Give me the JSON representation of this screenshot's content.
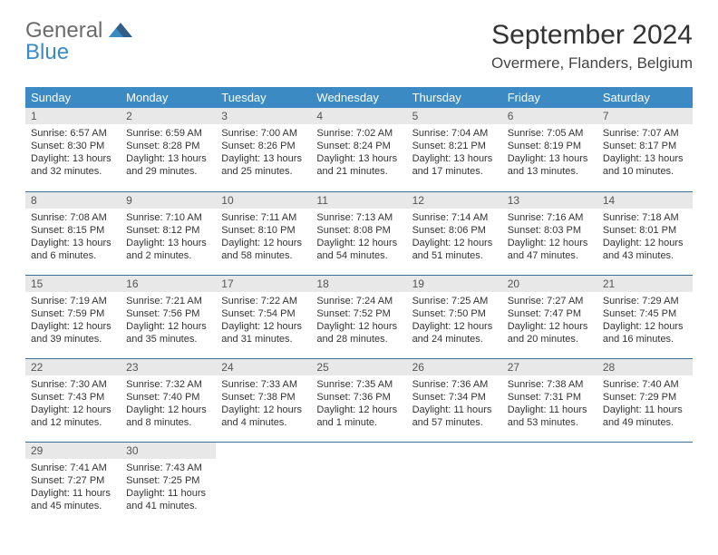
{
  "logo": {
    "general": "General",
    "blue": "Blue"
  },
  "title": "September 2024",
  "location": "Overmere, Flanders, Belgium",
  "colors": {
    "header_bg": "#3b8ac4",
    "header_text": "#ffffff",
    "daynum_bg": "#e8e8e8",
    "border": "#3b6f96",
    "logo_gray": "#6b6b6b",
    "logo_blue": "#3b8ac4"
  },
  "weekdays": [
    "Sunday",
    "Monday",
    "Tuesday",
    "Wednesday",
    "Thursday",
    "Friday",
    "Saturday"
  ],
  "weeks": [
    [
      {
        "n": "1",
        "sr": "Sunrise: 6:57 AM",
        "ss": "Sunset: 8:30 PM",
        "d1": "Daylight: 13 hours",
        "d2": "and 32 minutes."
      },
      {
        "n": "2",
        "sr": "Sunrise: 6:59 AM",
        "ss": "Sunset: 8:28 PM",
        "d1": "Daylight: 13 hours",
        "d2": "and 29 minutes."
      },
      {
        "n": "3",
        "sr": "Sunrise: 7:00 AM",
        "ss": "Sunset: 8:26 PM",
        "d1": "Daylight: 13 hours",
        "d2": "and 25 minutes."
      },
      {
        "n": "4",
        "sr": "Sunrise: 7:02 AM",
        "ss": "Sunset: 8:24 PM",
        "d1": "Daylight: 13 hours",
        "d2": "and 21 minutes."
      },
      {
        "n": "5",
        "sr": "Sunrise: 7:04 AM",
        "ss": "Sunset: 8:21 PM",
        "d1": "Daylight: 13 hours",
        "d2": "and 17 minutes."
      },
      {
        "n": "6",
        "sr": "Sunrise: 7:05 AM",
        "ss": "Sunset: 8:19 PM",
        "d1": "Daylight: 13 hours",
        "d2": "and 13 minutes."
      },
      {
        "n": "7",
        "sr": "Sunrise: 7:07 AM",
        "ss": "Sunset: 8:17 PM",
        "d1": "Daylight: 13 hours",
        "d2": "and 10 minutes."
      }
    ],
    [
      {
        "n": "8",
        "sr": "Sunrise: 7:08 AM",
        "ss": "Sunset: 8:15 PM",
        "d1": "Daylight: 13 hours",
        "d2": "and 6 minutes."
      },
      {
        "n": "9",
        "sr": "Sunrise: 7:10 AM",
        "ss": "Sunset: 8:12 PM",
        "d1": "Daylight: 13 hours",
        "d2": "and 2 minutes."
      },
      {
        "n": "10",
        "sr": "Sunrise: 7:11 AM",
        "ss": "Sunset: 8:10 PM",
        "d1": "Daylight: 12 hours",
        "d2": "and 58 minutes."
      },
      {
        "n": "11",
        "sr": "Sunrise: 7:13 AM",
        "ss": "Sunset: 8:08 PM",
        "d1": "Daylight: 12 hours",
        "d2": "and 54 minutes."
      },
      {
        "n": "12",
        "sr": "Sunrise: 7:14 AM",
        "ss": "Sunset: 8:06 PM",
        "d1": "Daylight: 12 hours",
        "d2": "and 51 minutes."
      },
      {
        "n": "13",
        "sr": "Sunrise: 7:16 AM",
        "ss": "Sunset: 8:03 PM",
        "d1": "Daylight: 12 hours",
        "d2": "and 47 minutes."
      },
      {
        "n": "14",
        "sr": "Sunrise: 7:18 AM",
        "ss": "Sunset: 8:01 PM",
        "d1": "Daylight: 12 hours",
        "d2": "and 43 minutes."
      }
    ],
    [
      {
        "n": "15",
        "sr": "Sunrise: 7:19 AM",
        "ss": "Sunset: 7:59 PM",
        "d1": "Daylight: 12 hours",
        "d2": "and 39 minutes."
      },
      {
        "n": "16",
        "sr": "Sunrise: 7:21 AM",
        "ss": "Sunset: 7:56 PM",
        "d1": "Daylight: 12 hours",
        "d2": "and 35 minutes."
      },
      {
        "n": "17",
        "sr": "Sunrise: 7:22 AM",
        "ss": "Sunset: 7:54 PM",
        "d1": "Daylight: 12 hours",
        "d2": "and 31 minutes."
      },
      {
        "n": "18",
        "sr": "Sunrise: 7:24 AM",
        "ss": "Sunset: 7:52 PM",
        "d1": "Daylight: 12 hours",
        "d2": "and 28 minutes."
      },
      {
        "n": "19",
        "sr": "Sunrise: 7:25 AM",
        "ss": "Sunset: 7:50 PM",
        "d1": "Daylight: 12 hours",
        "d2": "and 24 minutes."
      },
      {
        "n": "20",
        "sr": "Sunrise: 7:27 AM",
        "ss": "Sunset: 7:47 PM",
        "d1": "Daylight: 12 hours",
        "d2": "and 20 minutes."
      },
      {
        "n": "21",
        "sr": "Sunrise: 7:29 AM",
        "ss": "Sunset: 7:45 PM",
        "d1": "Daylight: 12 hours",
        "d2": "and 16 minutes."
      }
    ],
    [
      {
        "n": "22",
        "sr": "Sunrise: 7:30 AM",
        "ss": "Sunset: 7:43 PM",
        "d1": "Daylight: 12 hours",
        "d2": "and 12 minutes."
      },
      {
        "n": "23",
        "sr": "Sunrise: 7:32 AM",
        "ss": "Sunset: 7:40 PM",
        "d1": "Daylight: 12 hours",
        "d2": "and 8 minutes."
      },
      {
        "n": "24",
        "sr": "Sunrise: 7:33 AM",
        "ss": "Sunset: 7:38 PM",
        "d1": "Daylight: 12 hours",
        "d2": "and 4 minutes."
      },
      {
        "n": "25",
        "sr": "Sunrise: 7:35 AM",
        "ss": "Sunset: 7:36 PM",
        "d1": "Daylight: 12 hours",
        "d2": "and 1 minute."
      },
      {
        "n": "26",
        "sr": "Sunrise: 7:36 AM",
        "ss": "Sunset: 7:34 PM",
        "d1": "Daylight: 11 hours",
        "d2": "and 57 minutes."
      },
      {
        "n": "27",
        "sr": "Sunrise: 7:38 AM",
        "ss": "Sunset: 7:31 PM",
        "d1": "Daylight: 11 hours",
        "d2": "and 53 minutes."
      },
      {
        "n": "28",
        "sr": "Sunrise: 7:40 AM",
        "ss": "Sunset: 7:29 PM",
        "d1": "Daylight: 11 hours",
        "d2": "and 49 minutes."
      }
    ],
    [
      {
        "n": "29",
        "sr": "Sunrise: 7:41 AM",
        "ss": "Sunset: 7:27 PM",
        "d1": "Daylight: 11 hours",
        "d2": "and 45 minutes."
      },
      {
        "n": "30",
        "sr": "Sunrise: 7:43 AM",
        "ss": "Sunset: 7:25 PM",
        "d1": "Daylight: 11 hours",
        "d2": "and 41 minutes."
      },
      null,
      null,
      null,
      null,
      null
    ]
  ]
}
